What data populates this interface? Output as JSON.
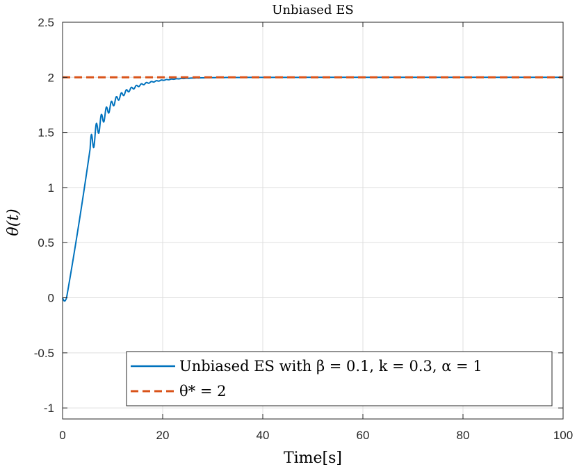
{
  "chart_data": {
    "type": "line",
    "title": "Unbiased ES",
    "xlabel": "Time[s]",
    "ylabel": "θ(t)",
    "xlim": [
      0,
      100
    ],
    "ylim": [
      -1.1,
      2.5
    ],
    "xticks": [
      0,
      20,
      40,
      60,
      80,
      100
    ],
    "xtick_labels": [
      "0",
      "20",
      "40",
      "60",
      "80",
      "100"
    ],
    "yticks": [
      -1,
      -0.5,
      0,
      0.5,
      1,
      1.5,
      2,
      2.5
    ],
    "ytick_labels": [
      "-1",
      "-0.5",
      "0",
      "0.5",
      "1",
      "1.5",
      "2",
      "2.5"
    ],
    "grid": true,
    "legend_position": "bottom-right",
    "series": [
      {
        "name": "Unbiased ES with β = 0.1, k = 0.3, α = 1",
        "color": "#0072BD",
        "style": "solid",
        "model": {
          "start_dip": -0.03,
          "ramp_end_time": 5.5,
          "ramp_end_value": 1.35,
          "target": 2.0,
          "decay_time_constant": 4.5,
          "oscillation_period": 1.0,
          "oscillation_amplitude_start": 0.1
        }
      },
      {
        "name": "θ* = 2",
        "color": "#D95319",
        "style": "dashed",
        "x": [
          0,
          100
        ],
        "y": [
          2,
          2
        ]
      }
    ]
  }
}
